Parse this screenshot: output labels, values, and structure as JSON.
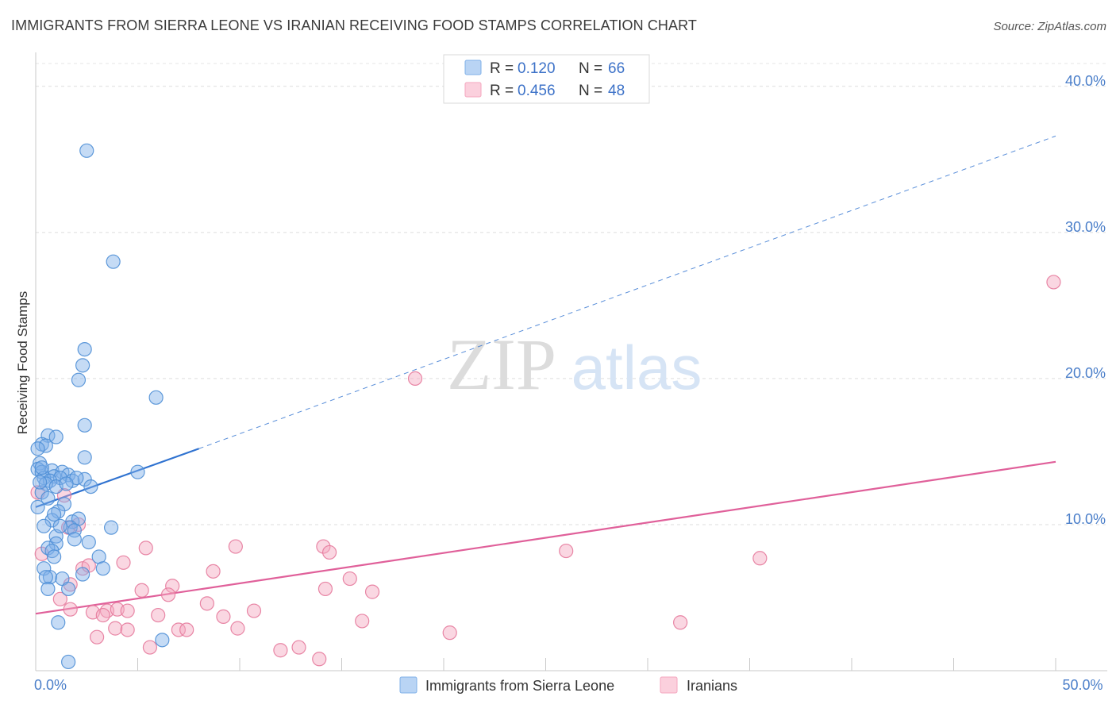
{
  "title": "IMMIGRANTS FROM SIERRA LEONE VS IRANIAN RECEIVING FOOD STAMPS CORRELATION CHART",
  "source": "Source: ZipAtlas.com",
  "watermark": {
    "zip": "ZIP",
    "atlas": "atlas"
  },
  "chart_data": {
    "type": "scatter",
    "title": "IMMIGRANTS FROM SIERRA LEONE VS IRANIAN RECEIVING FOOD STAMPS CORRELATION CHART",
    "xlabel": "",
    "ylabel": "Receiving Food Stamps",
    "xlim": [
      0,
      50
    ],
    "ylim": [
      0,
      42
    ],
    "x_tick_labels": [
      {
        "value": 0,
        "label": "0.0%"
      },
      {
        "value": 50,
        "label": "50.0%"
      }
    ],
    "y_tick_labels": [
      {
        "value": 10,
        "label": "10.0%"
      },
      {
        "value": 20,
        "label": "20.0%"
      },
      {
        "value": 30,
        "label": "30.0%"
      },
      {
        "value": 40,
        "label": "40.0%"
      }
    ],
    "legend": {
      "position": "top-center",
      "rows": [
        {
          "r_label": "R =",
          "r_value": "0.120",
          "n_label": "N =",
          "n_value": "66"
        },
        {
          "r_label": "R =",
          "r_value": "0.456",
          "n_label": "N =",
          "n_value": "48"
        }
      ]
    },
    "series": [
      {
        "name": "Immigrants from Sierra Leone",
        "color": "#7fb0e8",
        "stroke": "#4f8fd6",
        "trend": {
          "x0": 0,
          "y0": 11.2,
          "x1": 8,
          "y1": 15.2,
          "dash_to_x": 50,
          "dash_to_y": 36.6,
          "color": "#2f72d0"
        },
        "points": [
          [
            2.5,
            35.6
          ],
          [
            3.8,
            28.0
          ],
          [
            2.4,
            22.0
          ],
          [
            2.3,
            20.9
          ],
          [
            2.1,
            19.9
          ],
          [
            5.9,
            18.7
          ],
          [
            2.4,
            16.8
          ],
          [
            0.6,
            16.1
          ],
          [
            1.0,
            16.0
          ],
          [
            0.3,
            15.5
          ],
          [
            0.5,
            15.4
          ],
          [
            0.1,
            15.2
          ],
          [
            2.4,
            14.6
          ],
          [
            0.2,
            14.2
          ],
          [
            0.1,
            13.8
          ],
          [
            0.3,
            13.6
          ],
          [
            0.8,
            13.7
          ],
          [
            1.3,
            13.6
          ],
          [
            1.6,
            13.4
          ],
          [
            0.9,
            13.3
          ],
          [
            1.2,
            13.2
          ],
          [
            2.4,
            13.1
          ],
          [
            1.8,
            13.0
          ],
          [
            0.4,
            13.2
          ],
          [
            0.7,
            13.0
          ],
          [
            0.5,
            12.8
          ],
          [
            1.0,
            12.6
          ],
          [
            5.0,
            13.6
          ],
          [
            0.3,
            12.2
          ],
          [
            2.0,
            13.2
          ],
          [
            1.4,
            11.4
          ],
          [
            0.1,
            11.2
          ],
          [
            1.1,
            10.9
          ],
          [
            0.8,
            10.3
          ],
          [
            1.8,
            10.2
          ],
          [
            2.1,
            10.4
          ],
          [
            0.4,
            9.9
          ],
          [
            1.7,
            9.8
          ],
          [
            1.9,
            9.6
          ],
          [
            3.7,
            9.8
          ],
          [
            1.0,
            9.2
          ],
          [
            2.6,
            8.8
          ],
          [
            1.0,
            8.7
          ],
          [
            0.6,
            8.4
          ],
          [
            0.8,
            8.2
          ],
          [
            0.9,
            7.8
          ],
          [
            3.1,
            7.8
          ],
          [
            0.4,
            7.0
          ],
          [
            3.3,
            7.0
          ],
          [
            2.3,
            6.6
          ],
          [
            0.7,
            6.4
          ],
          [
            1.3,
            6.3
          ],
          [
            0.5,
            6.4
          ],
          [
            1.6,
            5.6
          ],
          [
            0.6,
            5.6
          ],
          [
            1.1,
            3.3
          ],
          [
            6.2,
            2.1
          ],
          [
            1.6,
            0.6
          ],
          [
            0.9,
            10.7
          ],
          [
            1.5,
            12.8
          ],
          [
            0.2,
            12.9
          ],
          [
            2.7,
            12.6
          ],
          [
            0.3,
            13.9
          ],
          [
            1.2,
            9.9
          ],
          [
            0.6,
            11.8
          ],
          [
            1.9,
            9.0
          ]
        ]
      },
      {
        "name": "Iranians",
        "color": "#f4a6be",
        "stroke": "#e57a9c",
        "trend": {
          "x0": 0,
          "y0": 3.9,
          "x1": 50,
          "y1": 14.3,
          "color": "#e0609a"
        },
        "points": [
          [
            0.3,
            8.0
          ],
          [
            0.1,
            12.2
          ],
          [
            1.4,
            12.0
          ],
          [
            1.6,
            9.8
          ],
          [
            2.1,
            10.0
          ],
          [
            18.6,
            20.0
          ],
          [
            49.9,
            26.6
          ],
          [
            5.4,
            8.4
          ],
          [
            9.8,
            8.5
          ],
          [
            14.1,
            8.5
          ],
          [
            14.4,
            8.1
          ],
          [
            26.0,
            8.2
          ],
          [
            35.5,
            7.7
          ],
          [
            4.3,
            7.4
          ],
          [
            2.3,
            7.0
          ],
          [
            2.6,
            7.2
          ],
          [
            8.7,
            6.8
          ],
          [
            15.4,
            6.3
          ],
          [
            6.7,
            5.8
          ],
          [
            1.7,
            5.9
          ],
          [
            5.2,
            5.5
          ],
          [
            6.5,
            5.2
          ],
          [
            14.2,
            5.6
          ],
          [
            16.5,
            5.4
          ],
          [
            1.2,
            4.9
          ],
          [
            8.4,
            4.6
          ],
          [
            1.7,
            4.2
          ],
          [
            2.8,
            4.0
          ],
          [
            3.5,
            4.1
          ],
          [
            4.0,
            4.2
          ],
          [
            4.5,
            4.1
          ],
          [
            3.3,
            3.8
          ],
          [
            6.0,
            3.8
          ],
          [
            9.2,
            3.7
          ],
          [
            10.7,
            4.1
          ],
          [
            16.0,
            3.4
          ],
          [
            31.6,
            3.3
          ],
          [
            3.9,
            2.9
          ],
          [
            4.5,
            2.8
          ],
          [
            7.0,
            2.8
          ],
          [
            7.4,
            2.8
          ],
          [
            9.9,
            2.9
          ],
          [
            20.3,
            2.6
          ],
          [
            3.0,
            2.3
          ],
          [
            5.6,
            1.6
          ],
          [
            12.0,
            1.4
          ],
          [
            12.9,
            1.6
          ],
          [
            13.9,
            0.8
          ]
        ]
      }
    ]
  },
  "bottom_legend": [
    {
      "label": "Immigrants from Sierra Leone"
    },
    {
      "label": "Iranians"
    }
  ]
}
